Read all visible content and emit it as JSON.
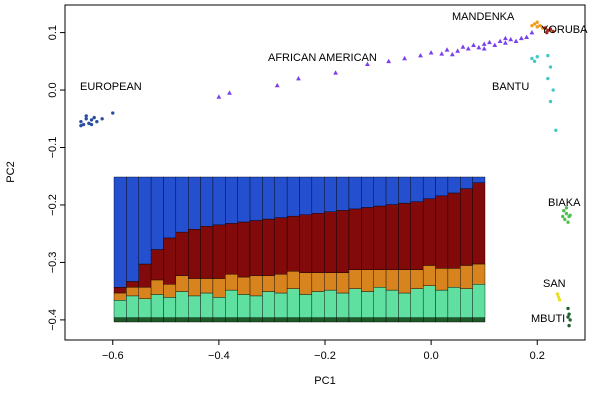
{
  "chart_data": [
    {
      "type": "scatter",
      "xlabel": "PC1",
      "ylabel": "PC2",
      "xlim": [
        -0.69,
        0.29
      ],
      "ylim": [
        -0.435,
        0.148
      ],
      "xticks": [
        {
          "value": -0.6,
          "label": "−0.6"
        },
        {
          "value": -0.4,
          "label": "−0.4"
        },
        {
          "value": -0.2,
          "label": "−0.2"
        },
        {
          "value": 0,
          "label": "0.0"
        },
        0.2
      ],
      "yticks": [
        {
          "value": -0.4,
          "label": "−0.4"
        },
        {
          "value": -0.3,
          "label": "−0.3"
        },
        {
          "value": -0.2,
          "label": "−0.2"
        },
        {
          "value": -0.1,
          "label": "−0.1"
        },
        {
          "value": 0,
          "label": "0.0"
        },
        0.1
      ],
      "series": [
        {
          "name": "EUROPEAN",
          "color": "#2a4d9e",
          "marker": "circle",
          "x": [
            -0.66,
            -0.655,
            -0.65,
            -0.645,
            -0.64,
            -0.635,
            -0.63,
            -0.66,
            -0.65,
            -0.64,
            -0.62,
            -0.6
          ],
          "values": [
            -0.055,
            -0.06,
            -0.05,
            -0.058,
            -0.052,
            -0.048,
            -0.055,
            -0.062,
            -0.045,
            -0.06,
            -0.05,
            -0.04
          ]
        },
        {
          "name": "AFRICAN AMERICAN",
          "color": "#7b3ff0",
          "marker": "triangle",
          "x": [
            -0.4,
            -0.38,
            -0.29,
            -0.25,
            -0.18,
            -0.12,
            -0.08,
            -0.05,
            -0.02,
            0,
            0.02,
            0.03,
            0.05,
            0.06,
            0.07,
            0.08,
            0.09,
            0.1,
            0.11,
            0.12,
            0.13,
            0.14,
            0.15,
            0.16,
            0.17,
            0.18,
            0.04,
            0.1,
            0.14,
            0.19
          ],
          "values": [
            -0.012,
            -0.005,
            0.008,
            0.02,
            0.03,
            0.045,
            0.05,
            0.055,
            0.06,
            0.065,
            0.063,
            0.07,
            0.068,
            0.075,
            0.072,
            0.078,
            0.074,
            0.08,
            0.083,
            0.078,
            0.085,
            0.082,
            0.088,
            0.085,
            0.09,
            0.092,
            0.062,
            0.072,
            0.09,
            0.1
          ]
        },
        {
          "name": "MANDENKA",
          "color": "#f0a020",
          "marker": "circle",
          "x": [
            0.195,
            0.2,
            0.205,
            0.21,
            0.2,
            0.19
          ],
          "values": [
            0.115,
            0.11,
            0.112,
            0.108,
            0.118,
            0.112
          ]
        },
        {
          "name": "YORUBA",
          "color": "#a52a1a",
          "marker": "circle",
          "x": [
            0.215,
            0.22,
            0.225,
            0.218,
            0.23
          ],
          "values": [
            0.108,
            0.104,
            0.106,
            0.1,
            0.102
          ]
        },
        {
          "name": "BANTU",
          "color": "#40c8c8",
          "marker": "circle",
          "x": [
            0.19,
            0.195,
            0.2,
            0.22,
            0.225,
            0.22,
            0.23,
            0.225,
            0.235
          ],
          "values": [
            0.055,
            0.05,
            0.058,
            0.06,
            0.04,
            0.02,
            0.0,
            -0.02,
            -0.07
          ]
        },
        {
          "name": "BIAKA",
          "color": "#50c050",
          "marker": "circle",
          "x": [
            0.25,
            0.255,
            0.26,
            0.252,
            0.258,
            0.262,
            0.248,
            0.255
          ],
          "values": [
            -0.21,
            -0.215,
            -0.22,
            -0.225,
            -0.23,
            -0.218,
            -0.22,
            -0.205
          ]
        },
        {
          "name": "SAN",
          "color": "#e8e020",
          "marker": "circle",
          "x": [
            0.238,
            0.24,
            0.242
          ],
          "values": [
            -0.355,
            -0.36,
            -0.365
          ]
        },
        {
          "name": "MBUTI",
          "color": "#206030",
          "marker": "circle",
          "x": [
            0.258,
            0.26,
            0.262,
            0.26,
            0.258
          ],
          "values": [
            -0.38,
            -0.39,
            -0.4,
            -0.41,
            -0.395
          ]
        }
      ]
    },
    {
      "type": "stacked_bar",
      "series": [
        {
          "color": "#1e5a28",
          "values": [
            0.03,
            0.03,
            0.03,
            0.03,
            0.03,
            0.03,
            0.03,
            0.03,
            0.03,
            0.03,
            0.03,
            0.03,
            0.03,
            0.03,
            0.03,
            0.03,
            0.03,
            0.03,
            0.03,
            0.03,
            0.03,
            0.03,
            0.03,
            0.03,
            0.03,
            0.03,
            0.03,
            0.03,
            0.03,
            0.03
          ]
        },
        {
          "color": "#5fe0a0",
          "values": [
            0.12,
            0.15,
            0.13,
            0.16,
            0.14,
            0.18,
            0.15,
            0.17,
            0.14,
            0.19,
            0.16,
            0.15,
            0.18,
            0.17,
            0.2,
            0.16,
            0.18,
            0.19,
            0.17,
            0.2,
            0.18,
            0.21,
            0.19,
            0.17,
            0.2,
            0.22,
            0.19,
            0.21,
            0.2,
            0.23
          ]
        },
        {
          "color": "#d8841e",
          "values": [
            0.05,
            0.06,
            0.08,
            0.1,
            0.09,
            0.11,
            0.12,
            0.1,
            0.13,
            0.11,
            0.12,
            0.14,
            0.11,
            0.13,
            0.12,
            0.15,
            0.13,
            0.12,
            0.14,
            0.13,
            0.15,
            0.12,
            0.14,
            0.16,
            0.13,
            0.14,
            0.15,
            0.13,
            0.16,
            0.14
          ]
        },
        {
          "color": "#820a0a",
          "values": [
            0.04,
            0.04,
            0.16,
            0.21,
            0.32,
            0.3,
            0.34,
            0.36,
            0.37,
            0.35,
            0.38,
            0.38,
            0.39,
            0.39,
            0.38,
            0.4,
            0.41,
            0.42,
            0.43,
            0.42,
            0.43,
            0.44,
            0.45,
            0.46,
            0.47,
            0.46,
            0.5,
            0.52,
            0.53,
            0.56
          ]
        },
        {
          "color": "#2450d0",
          "values": [
            0.76,
            0.72,
            0.6,
            0.5,
            0.42,
            0.38,
            0.36,
            0.34,
            0.33,
            0.32,
            0.31,
            0.3,
            0.29,
            0.28,
            0.27,
            0.26,
            0.25,
            0.24,
            0.23,
            0.22,
            0.21,
            0.2,
            0.19,
            0.18,
            0.17,
            0.15,
            0.13,
            0.11,
            0.08,
            0.04
          ]
        }
      ]
    }
  ]
}
